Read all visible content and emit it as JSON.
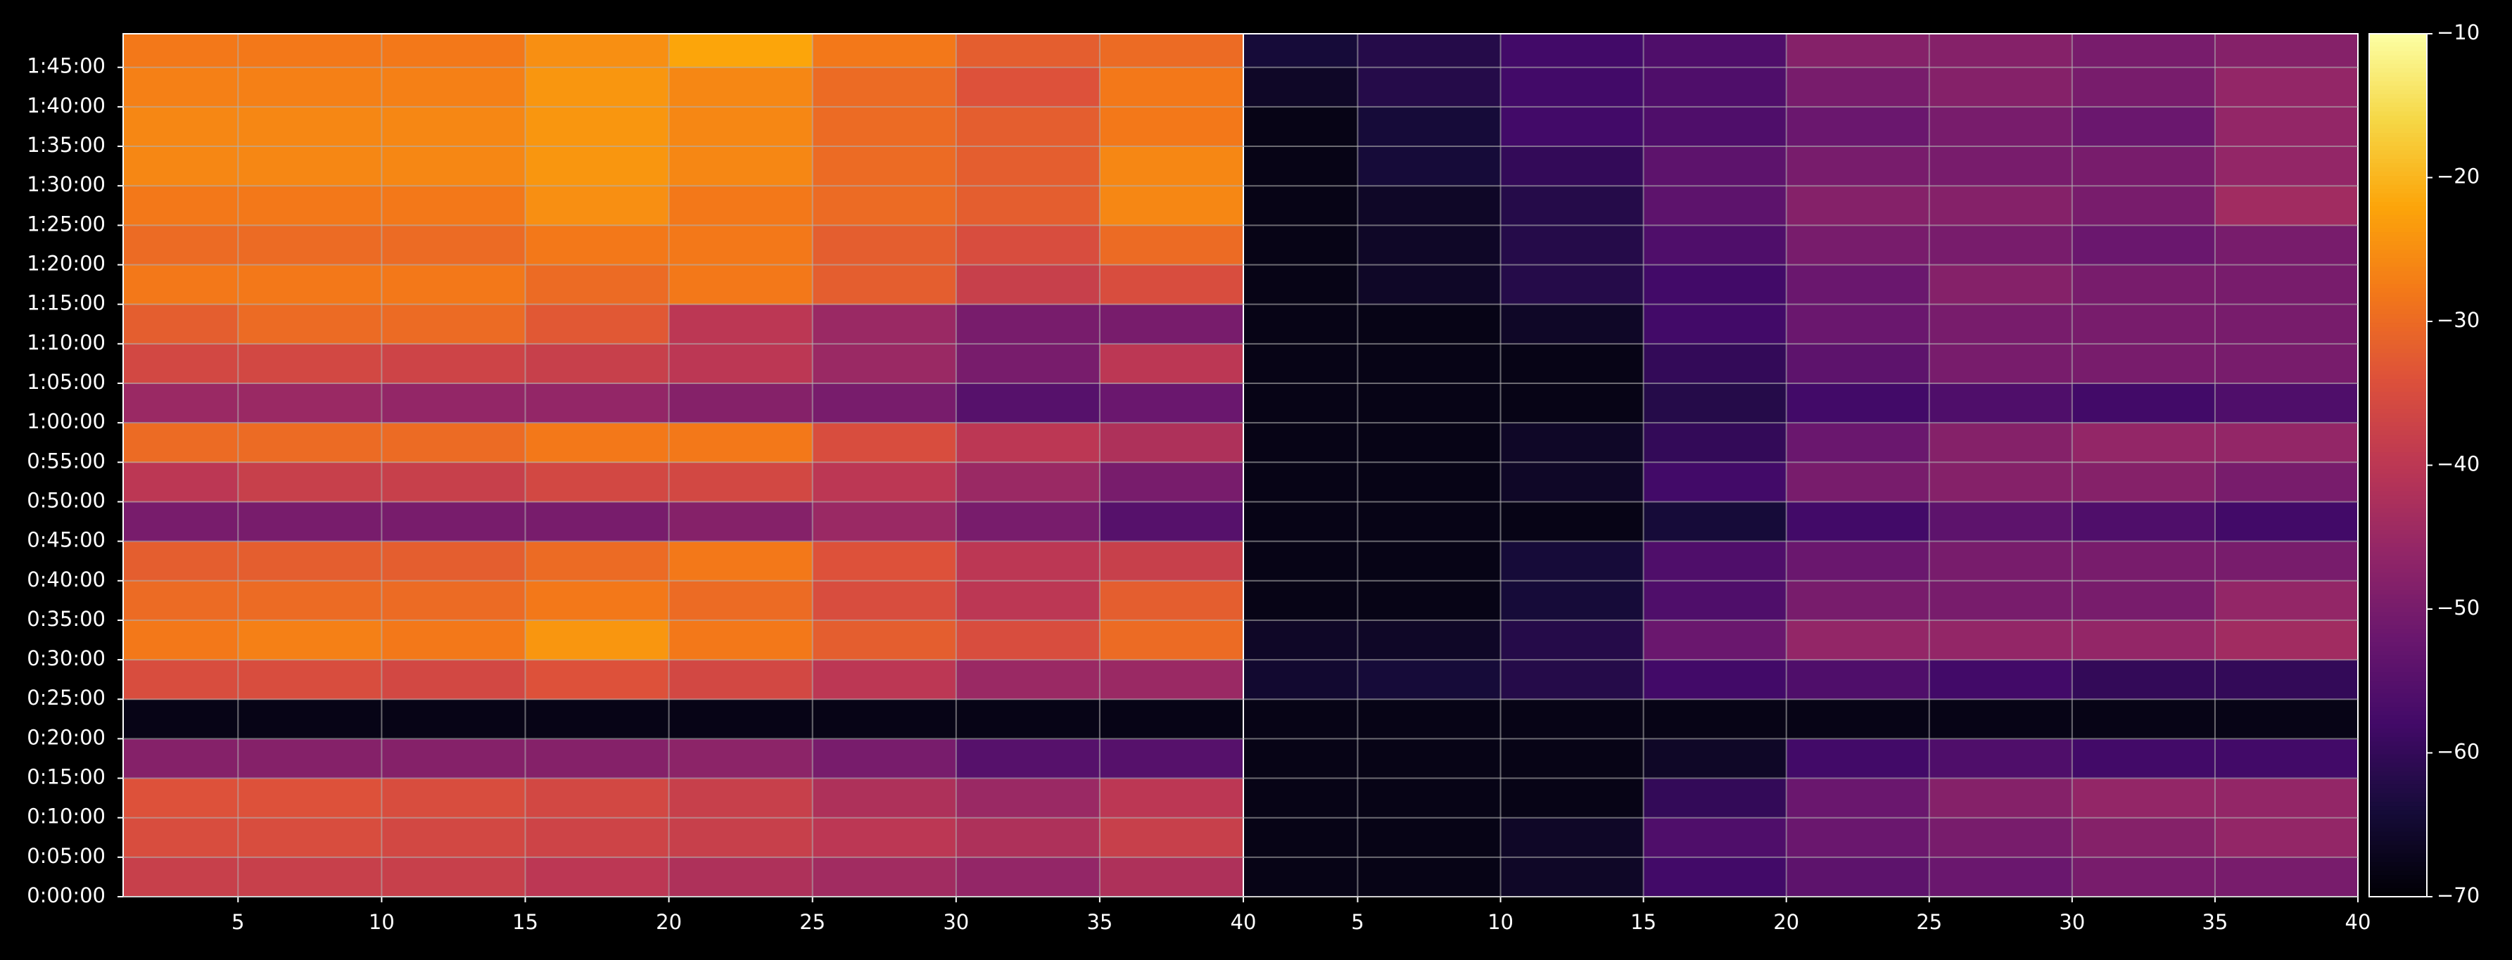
{
  "chart_data": {
    "type": "heatmap",
    "colormap": "inferno",
    "grid": true,
    "ylim": [
      0,
      6555
    ],
    "yticks": [
      {
        "value": 0,
        "label": "0:00:00"
      },
      {
        "value": 300,
        "label": "0:05:00"
      },
      {
        "value": 600,
        "label": "0:10:00"
      },
      {
        "value": 900,
        "label": "0:15:00"
      },
      {
        "value": 1200,
        "label": "0:20:00"
      },
      {
        "value": 1500,
        "label": "0:25:00"
      },
      {
        "value": 1800,
        "label": "0:30:00"
      },
      {
        "value": 2100,
        "label": "0:35:00"
      },
      {
        "value": 2400,
        "label": "0:40:00"
      },
      {
        "value": 2700,
        "label": "0:45:00"
      },
      {
        "value": 3000,
        "label": "0:50:00"
      },
      {
        "value": 3300,
        "label": "0:55:00"
      },
      {
        "value": 3600,
        "label": "1:00:00"
      },
      {
        "value": 3900,
        "label": "1:05:00"
      },
      {
        "value": 4200,
        "label": "1:10:00"
      },
      {
        "value": 4500,
        "label": "1:15:00"
      },
      {
        "value": 4800,
        "label": "1:20:00"
      },
      {
        "value": 5100,
        "label": "1:25:00"
      },
      {
        "value": 5400,
        "label": "1:30:00"
      },
      {
        "value": 5700,
        "label": "1:35:00"
      },
      {
        "value": 6000,
        "label": "1:40:00"
      },
      {
        "value": 6300,
        "label": "1:45:00"
      }
    ],
    "y_bins": [
      0,
      300,
      600,
      900,
      1200,
      1500,
      1800,
      2100,
      2400,
      2700,
      3000,
      3300,
      3600,
      3900,
      4200,
      4500,
      4800,
      5100,
      5400,
      5700,
      6000,
      6300,
      6555
    ],
    "clim": [
      -70,
      -10
    ],
    "cticks": [
      {
        "value": -10,
        "label": "−10"
      },
      {
        "value": -20,
        "label": "−20"
      },
      {
        "value": -30,
        "label": "−30"
      },
      {
        "value": -40,
        "label": "−40"
      },
      {
        "value": -50,
        "label": "−50"
      },
      {
        "value": -60,
        "label": "−60"
      },
      {
        "value": -70,
        "label": "−70"
      }
    ],
    "panels": [
      {
        "xlim": [
          1,
          40
        ],
        "xticks": [
          5,
          10,
          15,
          20,
          25,
          30,
          35,
          40
        ],
        "x_bins": [
          1,
          5,
          10,
          15,
          20,
          25,
          30,
          35,
          40
        ],
        "values": [
          [
            -38,
            -38,
            -38,
            -40,
            -42,
            -44,
            -46,
            -42
          ],
          [
            -35,
            -35,
            -36,
            -37,
            -38,
            -40,
            -42,
            -38
          ],
          [
            -34,
            -34,
            -35,
            -36,
            -38,
            -42,
            -45,
            -40
          ],
          [
            -48,
            -48,
            -48,
            -48,
            -47,
            -50,
            -55,
            -55
          ],
          [
            -68,
            -68,
            -68,
            -68,
            -68,
            -68,
            -68,
            -68
          ],
          [
            -35,
            -35,
            -36,
            -34,
            -36,
            -40,
            -45,
            -45
          ],
          [
            -28,
            -27,
            -28,
            -24,
            -28,
            -32,
            -35,
            -30
          ],
          [
            -30,
            -30,
            -30,
            -28,
            -30,
            -35,
            -40,
            -32
          ],
          [
            -32,
            -32,
            -32,
            -30,
            -28,
            -34,
            -40,
            -38
          ],
          [
            -50,
            -50,
            -50,
            -50,
            -48,
            -45,
            -50,
            -55
          ],
          [
            -40,
            -38,
            -38,
            -36,
            -36,
            -40,
            -45,
            -50
          ],
          [
            -30,
            -30,
            -30,
            -28,
            -28,
            -35,
            -40,
            -42
          ],
          [
            -45,
            -45,
            -46,
            -46,
            -48,
            -50,
            -55,
            -52
          ],
          [
            -36,
            -36,
            -37,
            -38,
            -40,
            -45,
            -50,
            -40
          ],
          [
            -32,
            -30,
            -30,
            -33,
            -40,
            -45,
            -50,
            -50
          ],
          [
            -28,
            -28,
            -28,
            -30,
            -28,
            -32,
            -38,
            -35
          ],
          [
            -30,
            -30,
            -30,
            -28,
            -28,
            -32,
            -35,
            -30
          ],
          [
            -28,
            -28,
            -28,
            -25,
            -28,
            -30,
            -32,
            -26
          ],
          [
            -26,
            -26,
            -26,
            -24,
            -26,
            -30,
            -32,
            -26
          ],
          [
            -26,
            -26,
            -26,
            -24,
            -26,
            -30,
            -32,
            -28
          ],
          [
            -27,
            -27,
            -27,
            -24,
            -26,
            -30,
            -34,
            -28
          ],
          [
            -28,
            -28,
            -28,
            -25,
            -22,
            -28,
            -32,
            -30
          ]
        ]
      },
      {
        "xlim": [
          1,
          40
        ],
        "xticks": [
          5,
          10,
          15,
          20,
          25,
          30,
          35,
          40
        ],
        "x_bins": [
          1,
          5,
          10,
          15,
          20,
          25,
          30,
          35,
          40
        ],
        "values": [
          [
            -68,
            -68,
            -66,
            -58,
            -54,
            -52,
            -50,
            -50
          ],
          [
            -68,
            -68,
            -66,
            -56,
            -52,
            -50,
            -48,
            -46
          ],
          [
            -68,
            -68,
            -68,
            -60,
            -52,
            -48,
            -46,
            -46
          ],
          [
            -68,
            -68,
            -68,
            -66,
            -58,
            -56,
            -58,
            -58
          ],
          [
            -68,
            -68,
            -68,
            -68,
            -68,
            -68,
            -68,
            -68
          ],
          [
            -65,
            -64,
            -62,
            -58,
            -56,
            -58,
            -60,
            -60
          ],
          [
            -66,
            -66,
            -62,
            -52,
            -46,
            -46,
            -46,
            -44
          ],
          [
            -68,
            -68,
            -64,
            -56,
            -50,
            -50,
            -50,
            -46
          ],
          [
            -68,
            -68,
            -64,
            -56,
            -52,
            -50,
            -50,
            -50
          ],
          [
            -68,
            -68,
            -68,
            -64,
            -58,
            -54,
            -56,
            -58
          ],
          [
            -68,
            -68,
            -66,
            -58,
            -50,
            -48,
            -48,
            -50
          ],
          [
            -68,
            -68,
            -66,
            -60,
            -52,
            -48,
            -46,
            -46
          ],
          [
            -68,
            -68,
            -68,
            -62,
            -58,
            -56,
            -58,
            -56
          ],
          [
            -68,
            -68,
            -68,
            -60,
            -54,
            -50,
            -50,
            -50
          ],
          [
            -68,
            -68,
            -66,
            -58,
            -52,
            -50,
            -50,
            -50
          ],
          [
            -68,
            -66,
            -62,
            -58,
            -52,
            -48,
            -50,
            -50
          ],
          [
            -68,
            -66,
            -62,
            -56,
            -50,
            -50,
            -52,
            -50
          ],
          [
            -68,
            -66,
            -62,
            -54,
            -48,
            -48,
            -50,
            -44
          ],
          [
            -68,
            -64,
            -60,
            -54,
            -50,
            -50,
            -50,
            -46
          ],
          [
            -68,
            -64,
            -58,
            -56,
            -52,
            -50,
            -52,
            -46
          ],
          [
            -66,
            -62,
            -58,
            -56,
            -50,
            -48,
            -50,
            -46
          ],
          [
            -64,
            -62,
            -58,
            -56,
            -48,
            -48,
            -50,
            -48
          ]
        ]
      }
    ]
  }
}
